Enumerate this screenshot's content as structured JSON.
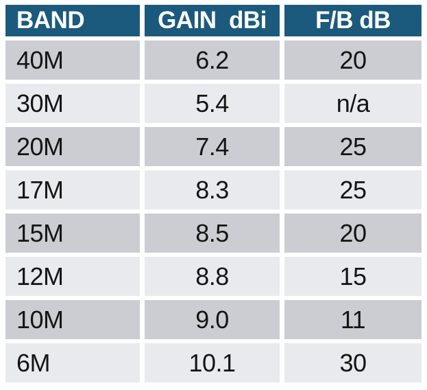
{
  "table": {
    "headers": {
      "band": "BAND",
      "gain": "GAIN  dBi",
      "fb": "F/B dB"
    },
    "rows": [
      {
        "band": "40M",
        "gain": "6.2",
        "fb": "20"
      },
      {
        "band": "30M",
        "gain": "5.4",
        "fb": "n/a"
      },
      {
        "band": "20M",
        "gain": "7.4",
        "fb": "25"
      },
      {
        "band": "17M",
        "gain": "8.3",
        "fb": "25"
      },
      {
        "band": "15M",
        "gain": "8.5",
        "fb": "20"
      },
      {
        "band": "12M",
        "gain": "8.8",
        "fb": "15"
      },
      {
        "band": "10M",
        "gain": "9.0",
        "fb": "11"
      },
      {
        "band": "6M",
        "gain": "10.1",
        "fb": "30"
      }
    ]
  },
  "colors": {
    "header_bg": "#1b5a7c",
    "header_text": "#ffffff",
    "row_dark": "#cbcdd2",
    "row_light": "#e9eaed",
    "body_text": "#141414",
    "background": "#ffffff"
  },
  "chart_data": {
    "type": "table",
    "title": "",
    "columns": [
      "BAND",
      "GAIN dBi",
      "F/B dB"
    ],
    "rows": [
      [
        "40M",
        6.2,
        "20"
      ],
      [
        "30M",
        5.4,
        "n/a"
      ],
      [
        "20M",
        7.4,
        "25"
      ],
      [
        "17M",
        8.3,
        "25"
      ],
      [
        "15M",
        8.5,
        "20"
      ],
      [
        "12M",
        8.8,
        "15"
      ],
      [
        "10M",
        9.0,
        "11"
      ],
      [
        "6M",
        10.1,
        "30"
      ]
    ]
  }
}
